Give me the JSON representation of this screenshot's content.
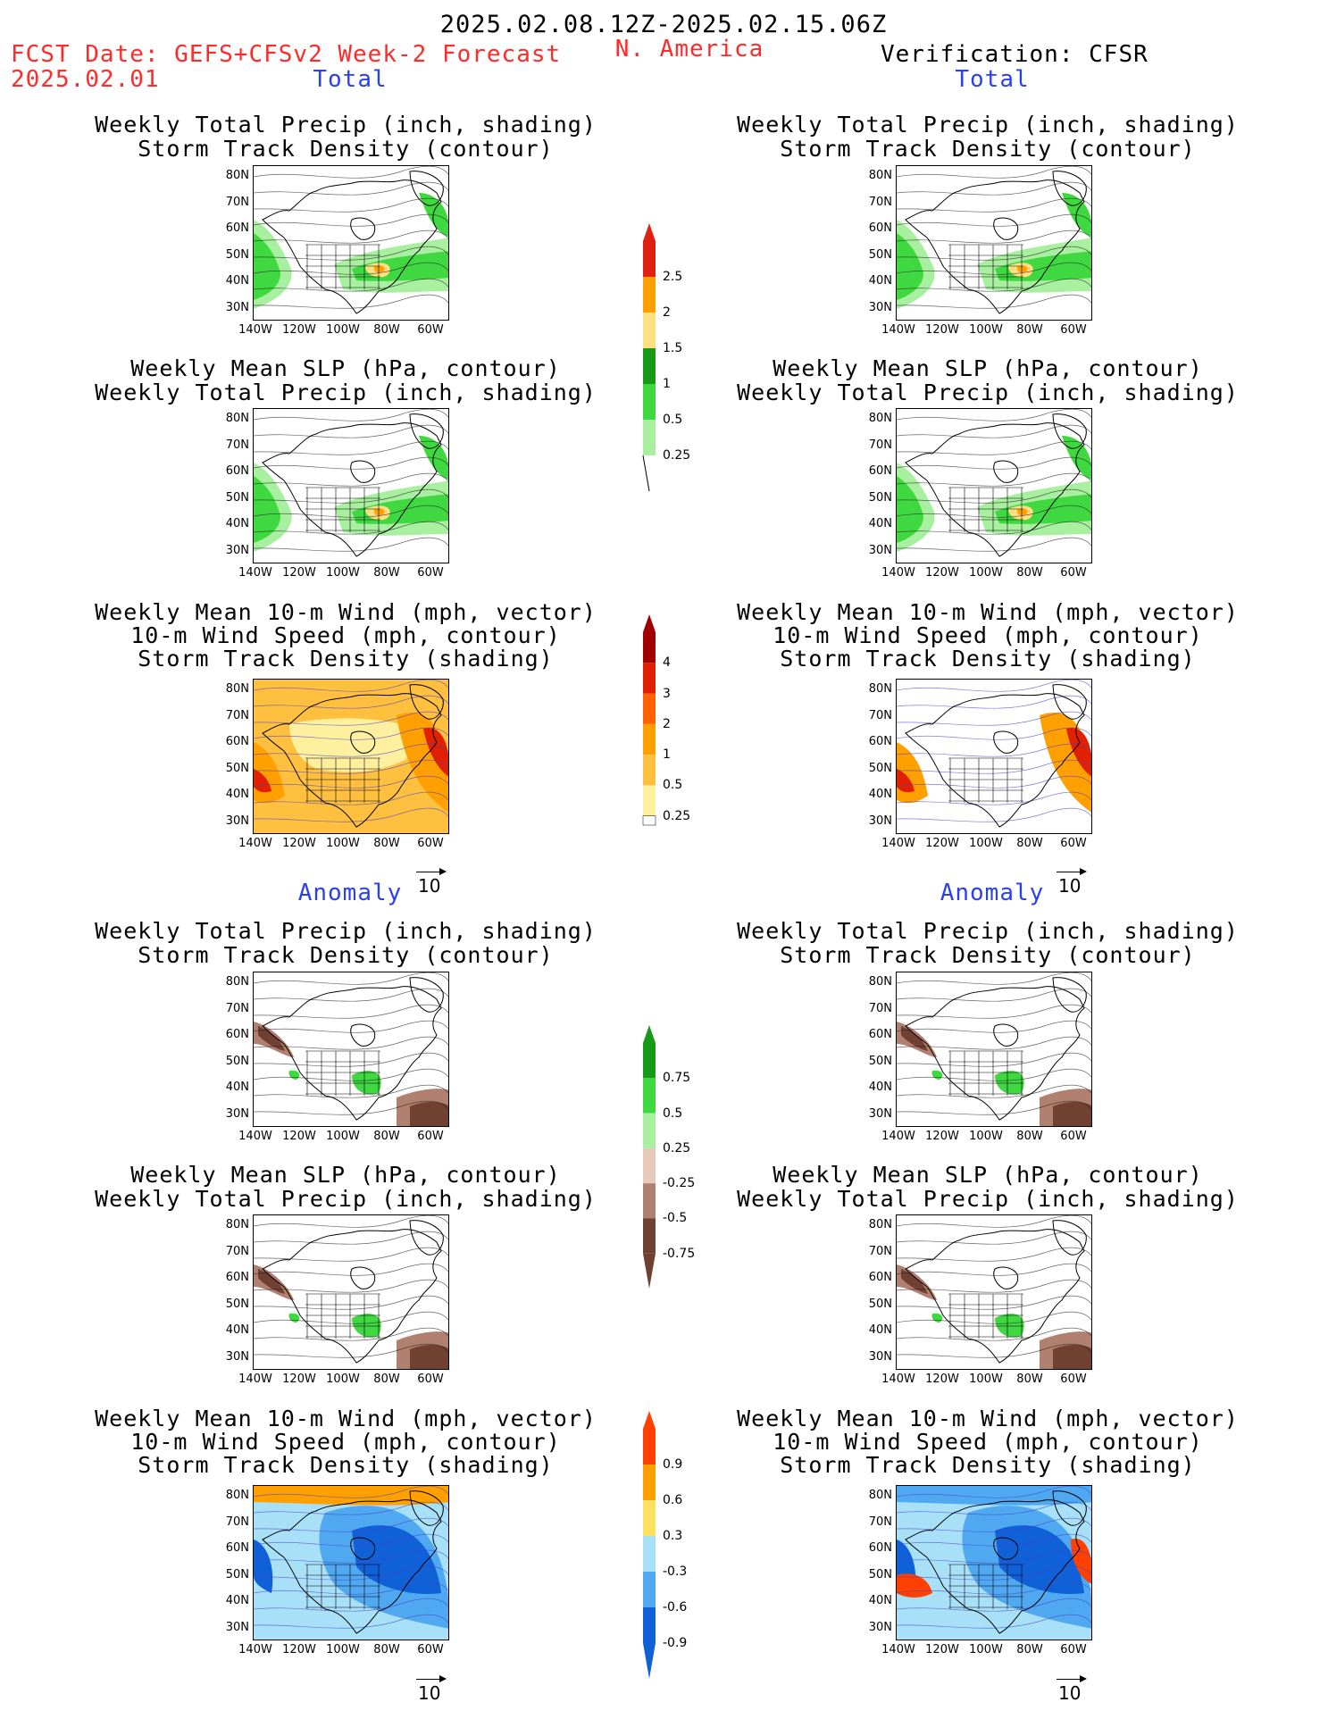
{
  "header": {
    "date_range": "2025.02.08.12Z-2025.02.15.06Z",
    "fcst_label": "FCST Date: GEFS+CFSv2 Week-2 Forecast",
    "fcst_date": "2025.02.01",
    "region": "N. America",
    "verification": "Verification: CFSR"
  },
  "sections": {
    "total": "Total",
    "anomaly": "Anomaly"
  },
  "titles": {
    "precip_track_1": "Weekly Total Precip (inch, shading)",
    "precip_track_2": "Storm Track Density (contour)",
    "slp_precip_1": "Weekly Mean SLP (hPa, contour)",
    "slp_precip_2": "Weekly Total Precip (inch, shading)",
    "wind_1": "Weekly Mean 10-m Wind (mph, vector)",
    "wind_2": "10-m Wind Speed (mph, contour)",
    "wind_3": "Storm Track Density (shading)"
  },
  "axes": {
    "lat": [
      "80N",
      "70N",
      "60N",
      "50N",
      "40N",
      "30N"
    ],
    "lon": [
      "140W",
      "120W",
      "100W",
      "80W",
      "60W"
    ]
  },
  "vector_ref": "10",
  "colorbars": {
    "precip_total": [
      "2.5",
      "2",
      "1.5",
      "1",
      "0.5",
      "0.25"
    ],
    "track_total": [
      "4",
      "3",
      "2",
      "1",
      "0.5",
      "0.25"
    ],
    "precip_anom": [
      "0.75",
      "0.5",
      "0.25",
      "-0.25",
      "-0.5",
      "-0.75"
    ],
    "track_anom": [
      "0.9",
      "0.6",
      "0.3",
      "-0.3",
      "-0.6",
      "-0.9"
    ]
  },
  "colors": {
    "precip_total": [
      "#e02010",
      "#ffa000",
      "#ffe080",
      "#189a18",
      "#40d840",
      "#a8f0a0"
    ],
    "track_total": [
      "#a00000",
      "#e02000",
      "#ff6000",
      "#ffa000",
      "#ffc040",
      "#fff0a0"
    ],
    "precip_anom": [
      "#189a18",
      "#40d840",
      "#a8f0a0",
      "#e8c8b8",
      "#b08070",
      "#704030"
    ],
    "track_anom": [
      "#ff4000",
      "#ffa000",
      "#ffe060",
      "#a8e0f8",
      "#50a8f0",
      "#1060d8"
    ]
  }
}
